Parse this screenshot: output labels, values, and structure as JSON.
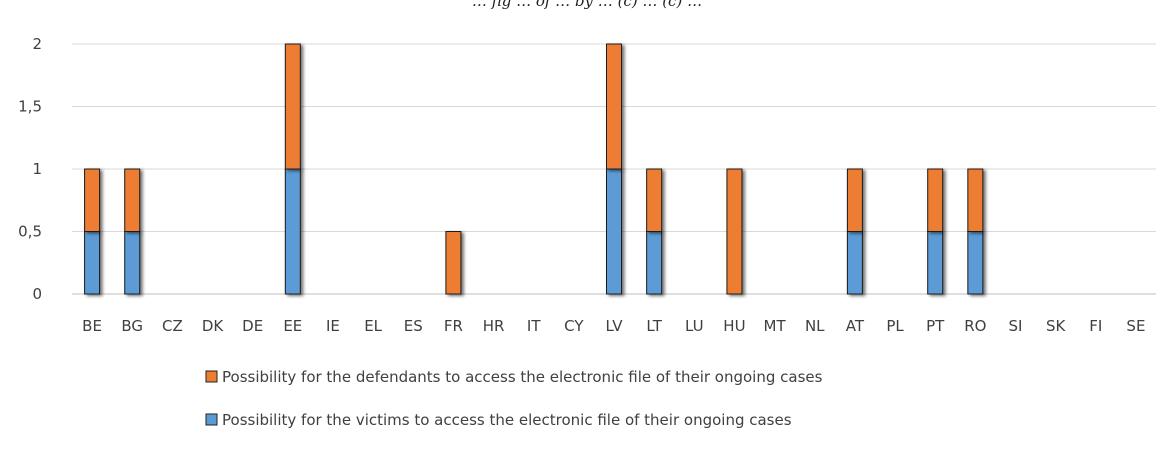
{
  "chart_data": {
    "type": "bar",
    "stacked": true,
    "title": "… fig … of … by … (c) … (c) …",
    "categories": [
      "BE",
      "BG",
      "CZ",
      "DK",
      "DE",
      "EE",
      "IE",
      "EL",
      "ES",
      "FR",
      "HR",
      "IT",
      "CY",
      "LV",
      "LT",
      "LU",
      "HU",
      "MT",
      "NL",
      "AT",
      "PL",
      "PT",
      "RO",
      "SI",
      "SK",
      "FI",
      "SE"
    ],
    "series": [
      {
        "name": "Possibility for the victims to access the electronic file of their ongoing cases",
        "color": "#5b9bd5",
        "values": [
          0.5,
          0.5,
          0,
          0,
          0,
          1,
          0,
          0,
          0,
          0,
          0,
          0,
          0,
          1,
          0.5,
          0,
          0,
          0,
          0,
          0.5,
          0,
          0.5,
          0.5,
          0,
          0,
          0,
          0
        ]
      },
      {
        "name": "Possibility for the defendants to access the electronic file of their ongoing cases",
        "color": "#ed7d31",
        "values": [
          0.5,
          0.5,
          0,
          0,
          0,
          1,
          0,
          0,
          0,
          0.5,
          0,
          0,
          0,
          1,
          0.5,
          0,
          1,
          0,
          0,
          0.5,
          0,
          0.5,
          0.5,
          0,
          0,
          0,
          0
        ]
      }
    ],
    "y_ticks": [
      "0",
      "0,5",
      "1",
      "1,5",
      "2"
    ],
    "ylim": [
      0,
      2
    ],
    "grid": true,
    "legend_position": "bottom"
  }
}
